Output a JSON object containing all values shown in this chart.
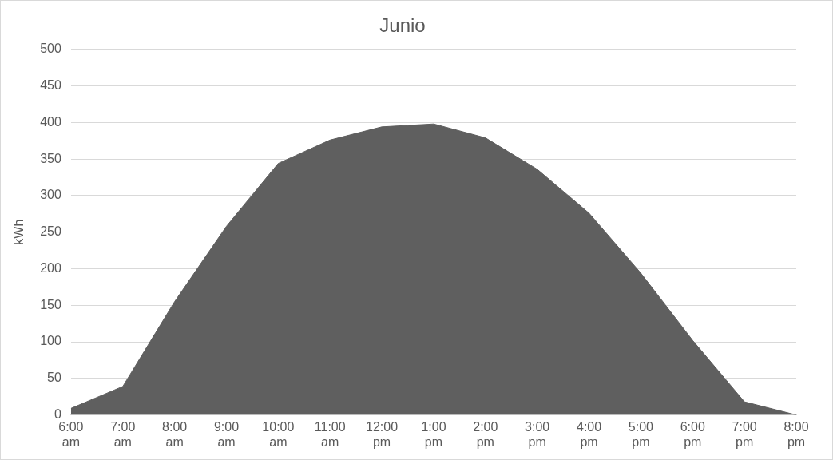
{
  "chart_data": {
    "type": "area",
    "title": "Junio",
    "ylabel": "kWh",
    "categories": [
      "6:00 am",
      "7:00 am",
      "8:00 am",
      "9:00 am",
      "10:00 am",
      "11:00 am",
      "12:00 pm",
      "1:00 pm",
      "2:00 pm",
      "3:00 pm",
      "4:00 pm",
      "5:00 pm",
      "6:00 pm",
      "7:00 pm",
      "8:00 pm"
    ],
    "values": [
      9,
      39,
      155,
      258,
      344,
      376,
      394,
      398,
      379,
      336,
      276,
      194,
      102,
      18,
      0
    ],
    "color": "#5f5f5f",
    "ylim": [
      0,
      500
    ],
    "yticks": [
      0,
      50,
      100,
      150,
      200,
      250,
      300,
      350,
      400,
      450,
      500
    ],
    "grid": "y",
    "legend": false
  }
}
